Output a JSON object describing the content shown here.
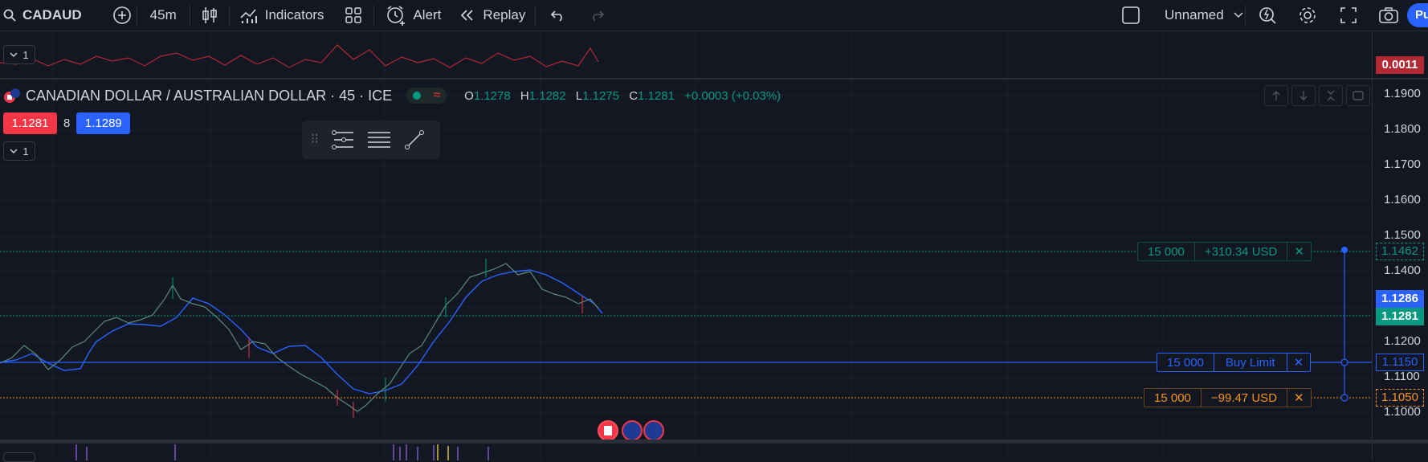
{
  "toolbar": {
    "symbol": "CADAUD",
    "interval": "45m",
    "indicators_label": "Indicators",
    "alert_label": "Alert",
    "replay_label": "Replay",
    "layout_name": "Unnamed",
    "publish_label": "Pu"
  },
  "indicator_pane": {
    "collapse_label": "1",
    "value_label": "0.0011",
    "value_color": "#b22833"
  },
  "legend": {
    "title": "CANADIAN DOLLAR / AUSTRALIAN DOLLAR · 45 · ICE",
    "o_label": "O",
    "o": "1.1278",
    "h_label": "H",
    "h": "1.1282",
    "l_label": "L",
    "l": "1.1275",
    "c_label": "C",
    "c": "1.1281",
    "change": "+0.0003 (+0.03%)"
  },
  "trade": {
    "sell_price": "1.1281",
    "spread": "8",
    "buy_price": "1.1289"
  },
  "main_collapse_label": "1",
  "price_axis": {
    "ticks": [
      "1.1900",
      "1.1800",
      "1.1700",
      "1.1600",
      "1.1500",
      "1.1400",
      "1.1200",
      "1.1100",
      "1.1000"
    ],
    "tp_label": "1.1462",
    "bid_label": "1.1286",
    "last_label": "1.1281",
    "entry_label": "1.1150",
    "sl_label": "1.1050"
  },
  "orders": {
    "take_profit": {
      "qty": "15 000",
      "pnl": "+310.34 USD",
      "close": "✕"
    },
    "buy_limit": {
      "qty": "15 000",
      "type": "Buy Limit",
      "close": "✕"
    },
    "stop_loss": {
      "qty": "15 000",
      "pnl": "−99.47 USD",
      "close": "✕"
    }
  },
  "colors": {
    "up": "#089981",
    "down": "#f23645",
    "accent": "#2962ff",
    "orange": "#f7931a"
  }
}
